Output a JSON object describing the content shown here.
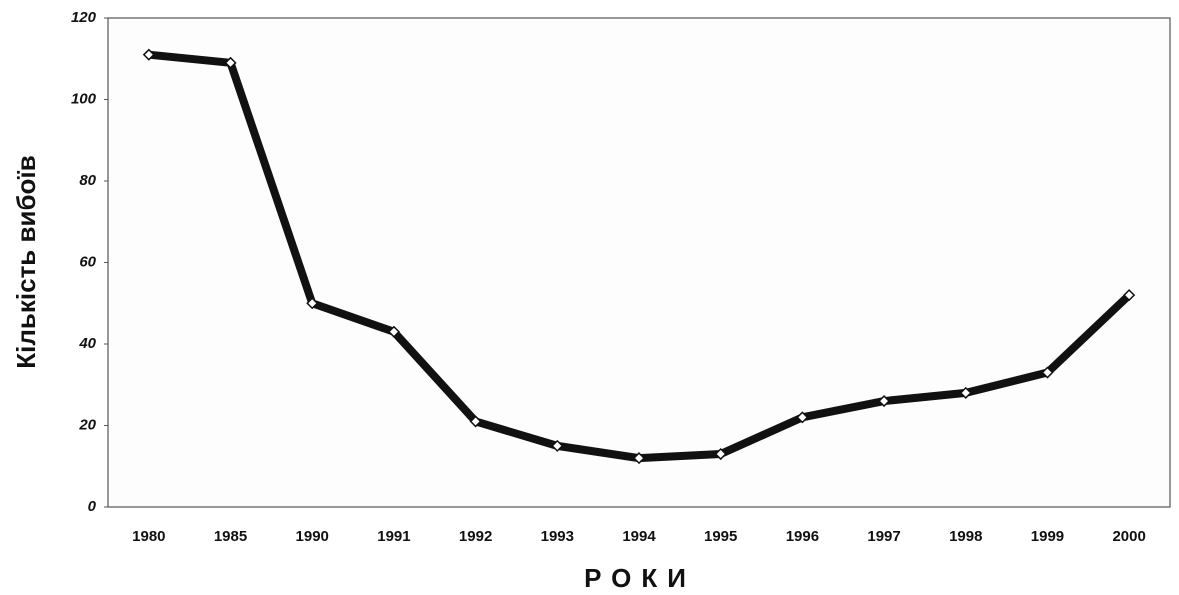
{
  "chart_data": {
    "type": "line",
    "x_label": "РОКИ",
    "y_label": "Кількість вибоїв",
    "categories": [
      "1980",
      "1985",
      "1990",
      "1991",
      "1992",
      "1993",
      "1994",
      "1995",
      "1996",
      "1997",
      "1998",
      "1999",
      "2000"
    ],
    "values": [
      111,
      109,
      50,
      43,
      21,
      15,
      12,
      13,
      22,
      26,
      28,
      33,
      52
    ],
    "color": "#111111",
    "ylim": [
      0,
      120
    ],
    "yticks": [
      0,
      20,
      40,
      60,
      80,
      100,
      120
    ],
    "grid": false
  }
}
